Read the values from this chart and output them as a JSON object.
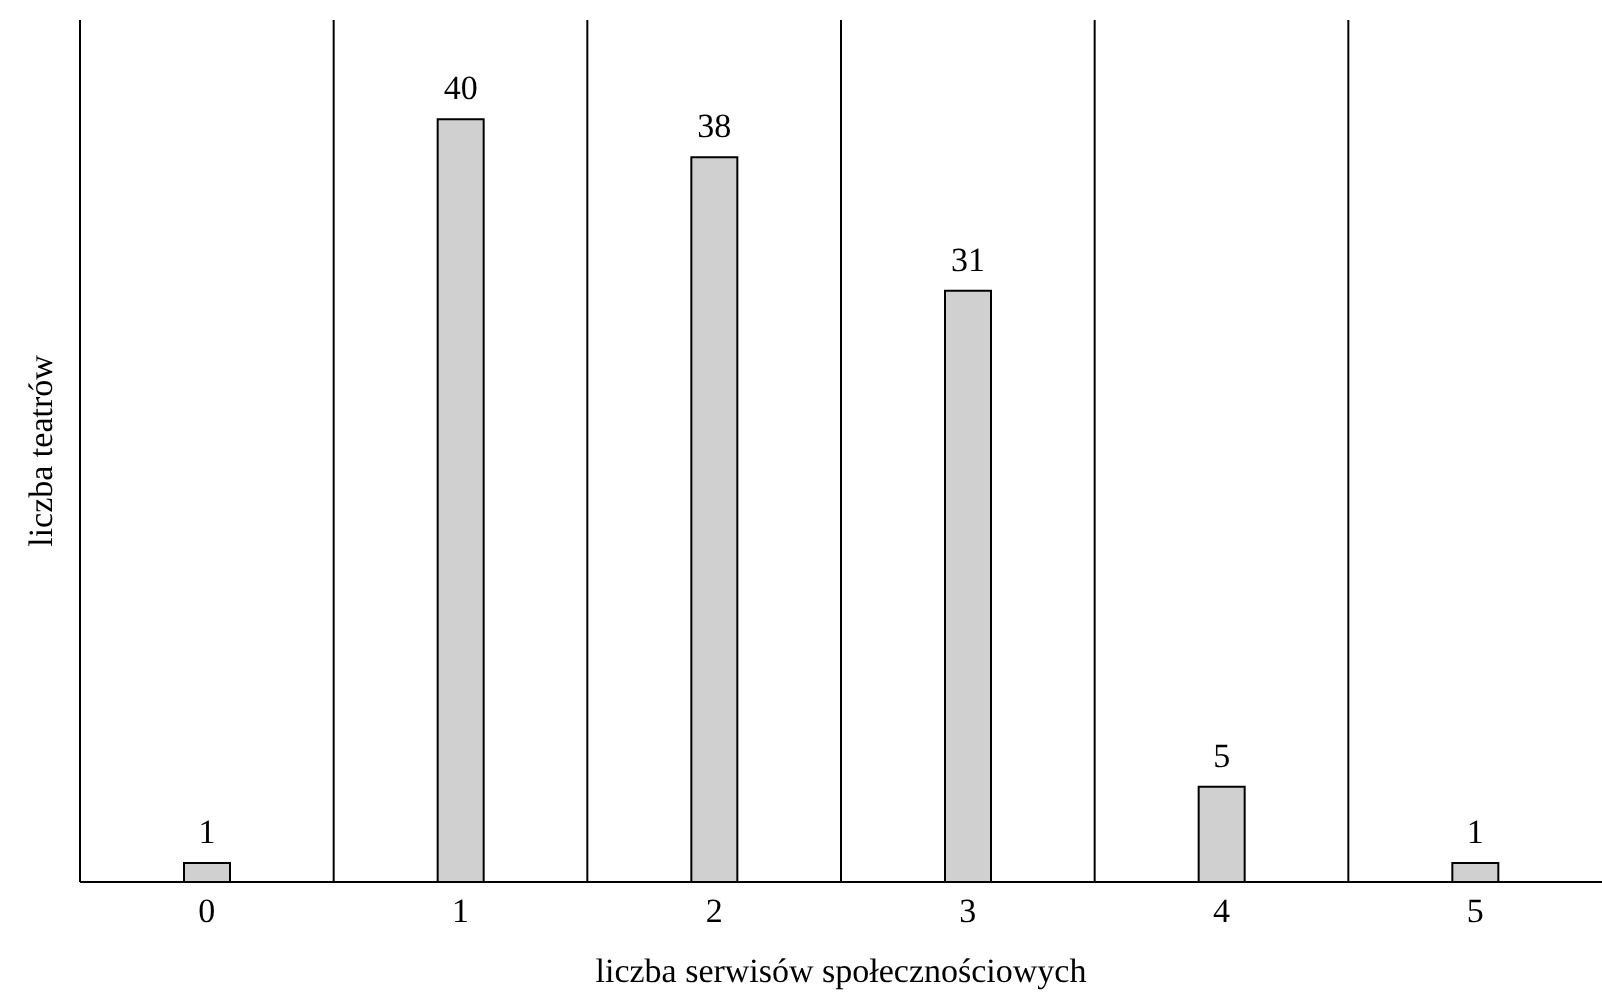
{
  "chart_data": {
    "type": "bar",
    "xlabel": "liczba serwisów społecznościowych",
    "ylabel": "liczba teatrów",
    "categories": [
      "0",
      "1",
      "2",
      "3",
      "4",
      "5"
    ],
    "values": [
      1,
      40,
      38,
      31,
      5,
      1
    ],
    "color": "#d0d0d0",
    "data_labels": true,
    "grid": "x"
  }
}
